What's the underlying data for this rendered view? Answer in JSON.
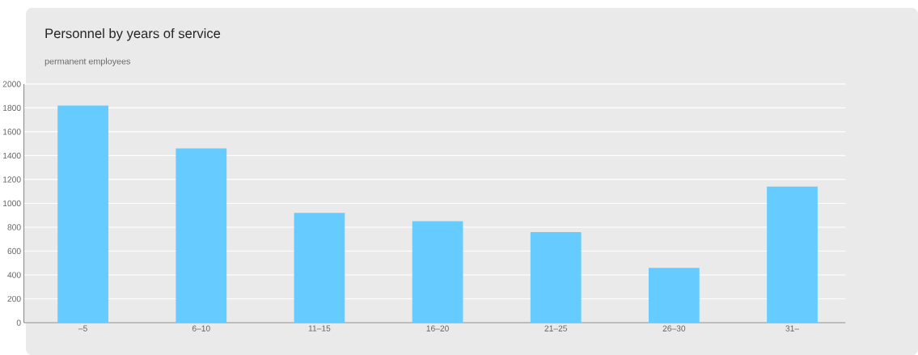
{
  "chart_data": {
    "type": "bar",
    "title": "Personnel by years of service",
    "subtitle": "permanent employees",
    "categories": [
      "–5",
      "6–10",
      "11–15",
      "16–20",
      "21–25",
      "26–30",
      "31–"
    ],
    "values": [
      1820,
      1460,
      920,
      850,
      760,
      460,
      1140
    ],
    "color": "#66ccff",
    "ylim": [
      0,
      2000
    ],
    "yticks": [
      0,
      200,
      400,
      600,
      800,
      1000,
      1200,
      1400,
      1600,
      1800,
      2000
    ],
    "grid": "y"
  }
}
